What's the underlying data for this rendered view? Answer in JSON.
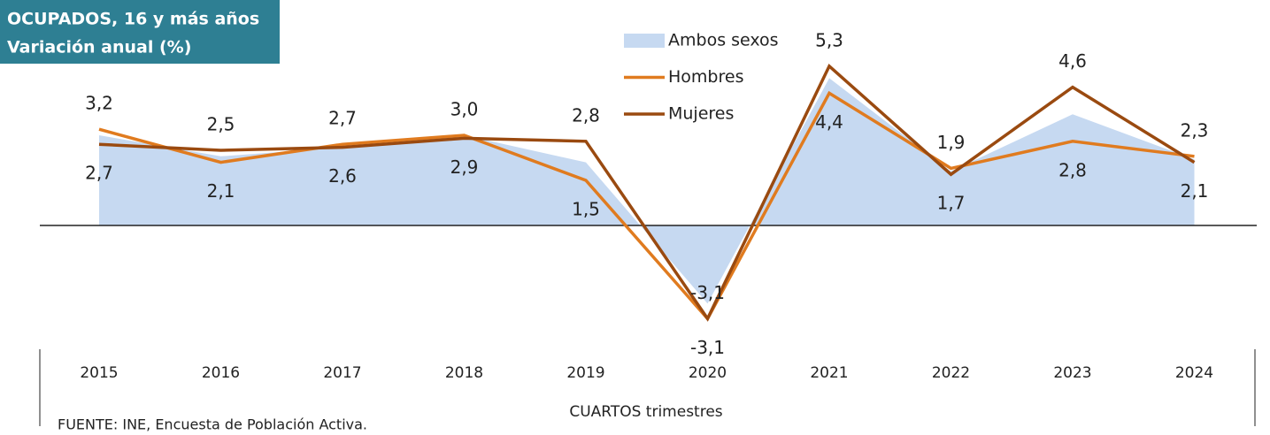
{
  "chart_data": {
    "type": "line",
    "title": "OCUPADOS, 16 y más años",
    "subtitle": "Variación anual (%)",
    "x_label": "CUARTOS trimestres",
    "source": "FUENTE: INE, Encuesta de Población Activa.",
    "categories": [
      "2015",
      "2016",
      "2017",
      "2018",
      "2019",
      "2020",
      "2021",
      "2022",
      "2023",
      "2024"
    ],
    "ylim": [
      -4.5,
      7.5
    ],
    "series": [
      {
        "name": "Ambos sexos",
        "color": "#c6d9f1",
        "style": "area",
        "values": [
          3.0,
          2.3,
          2.6,
          3.0,
          2.1,
          -2.6,
          4.9,
          1.8,
          3.7,
          2.2
        ]
      },
      {
        "name": "Hombres",
        "color": "#e07b1f",
        "style": "line",
        "values": [
          3.2,
          2.1,
          2.7,
          3.0,
          1.5,
          -3.1,
          4.4,
          1.9,
          2.8,
          2.3
        ],
        "value_labels": [
          "3,2",
          "2,1",
          "2,7",
          "3,0",
          "1,5",
          "-3,1",
          "4,4",
          "1,9",
          "2,8",
          "2,3"
        ]
      },
      {
        "name": "Mujeres",
        "color": "#9a4a10",
        "style": "line",
        "values": [
          2.7,
          2.5,
          2.6,
          2.9,
          2.8,
          -3.1,
          5.3,
          1.7,
          4.6,
          2.1
        ],
        "value_labels": [
          "2,7",
          "2,5",
          "2,6",
          "2,9",
          "2,8",
          "-3,1",
          "5,3",
          "1,7",
          "4,6",
          "2,1"
        ]
      }
    ]
  }
}
